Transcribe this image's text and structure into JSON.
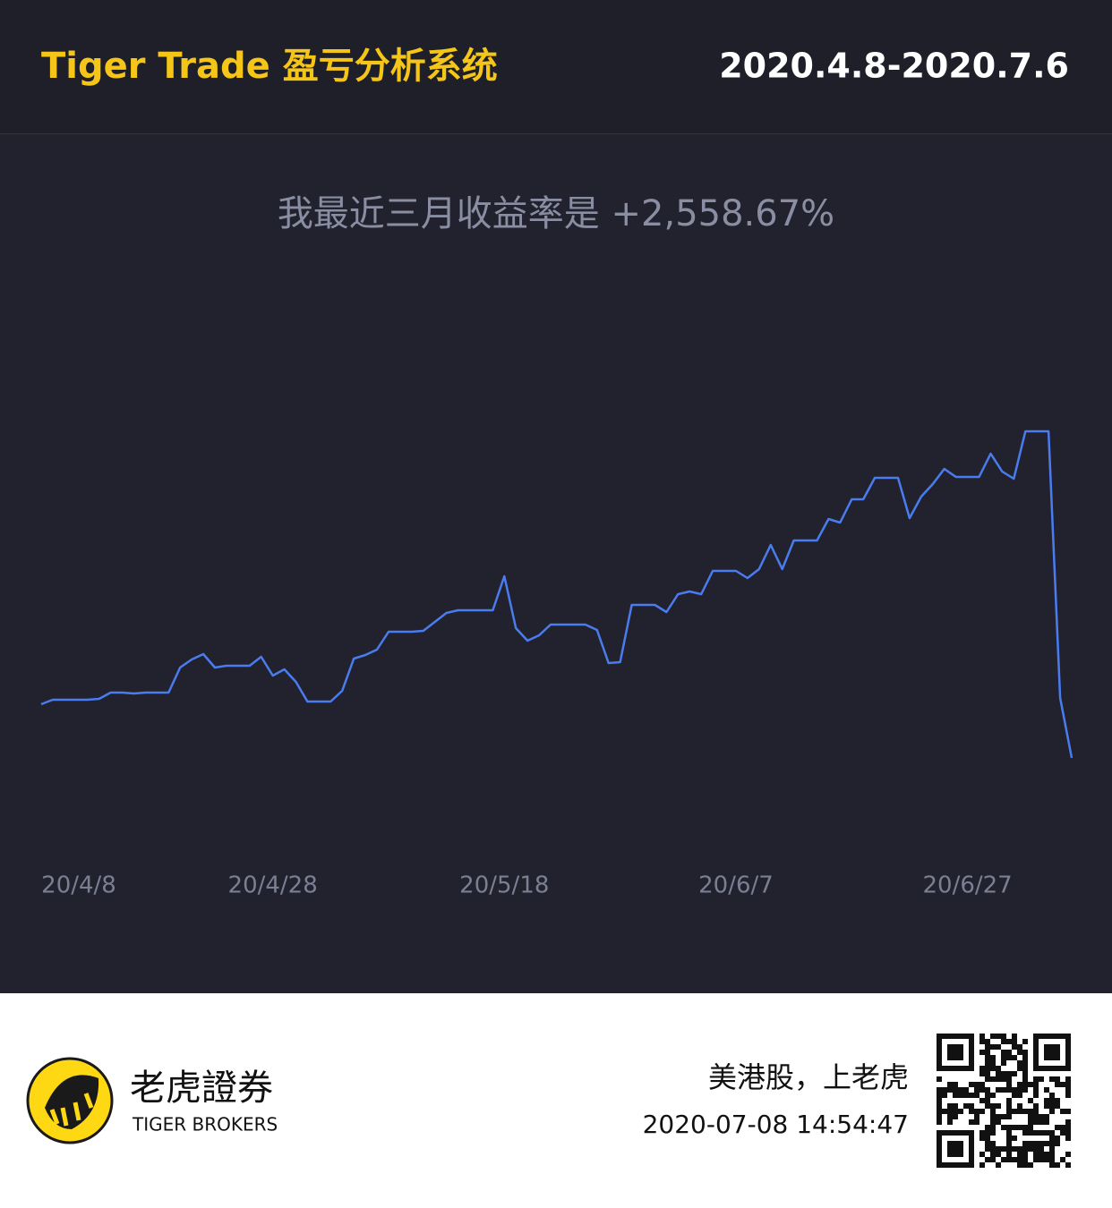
{
  "header": {
    "title": "Tiger Trade 盈亏分析系统",
    "date_range": "2020.4.8-2020.7.6"
  },
  "chart_data": {
    "type": "line",
    "title": "我最近三月收益率是 +2,558.67%",
    "categories": [
      "20/4/8",
      null,
      null,
      null,
      null,
      null,
      null,
      null,
      null,
      null,
      null,
      null,
      null,
      null,
      null,
      null,
      null,
      null,
      null,
      null,
      "20/4/28",
      null,
      null,
      null,
      null,
      null,
      null,
      null,
      null,
      null,
      null,
      null,
      null,
      null,
      null,
      null,
      null,
      null,
      null,
      null,
      "20/5/18",
      null,
      null,
      null,
      null,
      null,
      null,
      null,
      null,
      null,
      null,
      null,
      null,
      null,
      null,
      null,
      null,
      null,
      null,
      null,
      "20/6/7",
      null,
      null,
      null,
      null,
      null,
      null,
      null,
      null,
      null,
      null,
      null,
      null,
      null,
      null,
      null,
      null,
      null,
      null,
      null,
      "20/6/27",
      null,
      null,
      null,
      null,
      null,
      null,
      null,
      null,
      null
    ],
    "values": [
      22.6,
      23.6,
      23.6,
      23.6,
      23.6,
      23.8,
      25.2,
      25.2,
      25,
      25.2,
      25.2,
      25.2,
      30.8,
      32.6,
      33.8,
      30.8,
      31.2,
      31.2,
      31.2,
      33.2,
      29,
      30.4,
      27.6,
      23.2,
      23.2,
      23.2,
      25.6,
      32.8,
      33.6,
      34.8,
      38.8,
      38.8,
      38.8,
      39,
      41,
      43,
      43.6,
      43.6,
      43.6,
      43.6,
      51.2,
      39.6,
      36.8,
      38,
      40.4,
      40.4,
      40.4,
      40.4,
      39.2,
      31.8,
      32,
      44.8,
      44.8,
      44.8,
      43.2,
      47.2,
      47.8,
      47.2,
      52.4,
      52.4,
      52.4,
      50.8,
      52.8,
      58.2,
      52.8,
      59.2,
      59.2,
      59.2,
      64,
      63.2,
      68.4,
      68.4,
      73.2,
      73.2,
      73.2,
      64.2,
      69,
      71.8,
      75.2,
      73.4,
      73.4,
      73.4,
      78.6,
      74.6,
      73,
      83.6,
      83.6,
      83.6,
      24,
      10.6
    ],
    "color": "#4a7cf0",
    "ylim": [
      0,
      100
    ]
  },
  "footer": {
    "brand_cn": "老虎證券",
    "brand_en": "TIGER BROKERS",
    "slogan": "美港股，上老虎",
    "timestamp": "2020-07-08 14:54:47"
  }
}
